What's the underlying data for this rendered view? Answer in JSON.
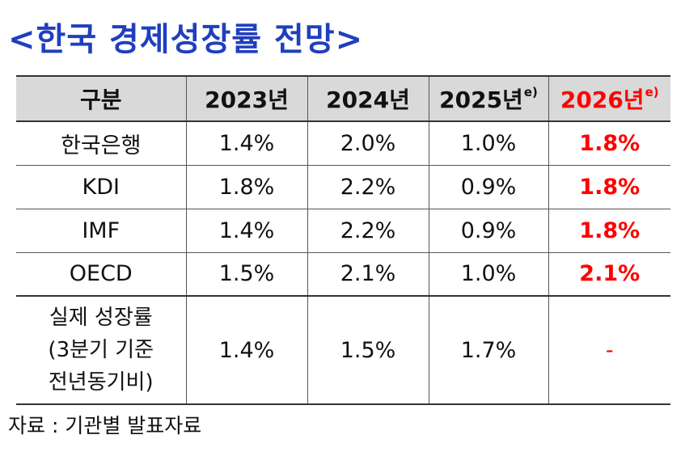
{
  "title": "<한국 경제성장률 전망>",
  "table": {
    "header": {
      "label": "구분",
      "y2023": "2023년",
      "y2024": "2024년",
      "y2025": "2025년",
      "y2025_note": "e)",
      "y2026": "2026년",
      "y2026_note": "e)"
    },
    "rows": [
      {
        "name": "한국은행",
        "v2023": "1.4%",
        "v2024": "2.0%",
        "v2025": "1.0%",
        "v2026": "1.8%"
      },
      {
        "name": "KDI",
        "v2023": "1.8%",
        "v2024": "2.2%",
        "v2025": "0.9%",
        "v2026": "1.8%"
      },
      {
        "name": "IMF",
        "v2023": "1.4%",
        "v2024": "2.2%",
        "v2025": "0.9%",
        "v2026": "1.8%"
      },
      {
        "name": "OECD",
        "v2023": "1.5%",
        "v2024": "2.1%",
        "v2025": "1.0%",
        "v2026": "2.1%"
      }
    ],
    "actual": {
      "name_line1": "실제 성장률",
      "name_line2": "(3분기 기준",
      "name_line3": "전년동기비)",
      "v2023": "1.4%",
      "v2024": "1.5%",
      "v2025": "1.7%",
      "v2026": "-"
    }
  },
  "source": "자료 : 기관별 발표자료",
  "colors": {
    "title": "#1f3fbf",
    "highlight": "#ff0000",
    "header_bg": "#d9d9d9"
  }
}
